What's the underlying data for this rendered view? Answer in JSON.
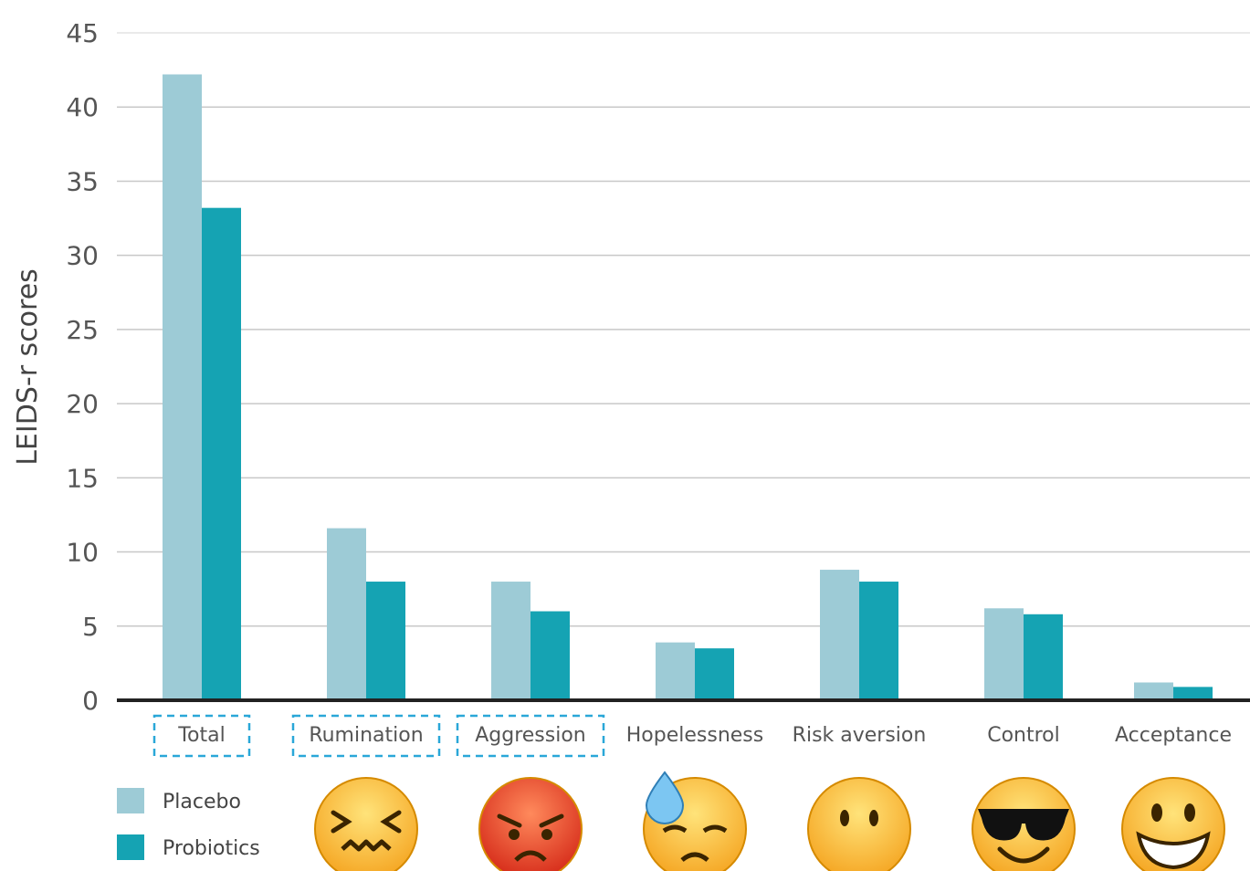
{
  "chart_data": {
    "type": "bar",
    "ylabel": "LEIDS-r scores",
    "xlabel": "",
    "ylim": [
      0,
      45
    ],
    "yticks": [
      0,
      5,
      10,
      15,
      20,
      25,
      30,
      35,
      40,
      45
    ],
    "grid": true,
    "legend_position": "bottom-left",
    "categories": [
      "Total",
      "Rumination",
      "Aggression",
      "Hopelessness",
      "Risk aversion",
      "Control",
      "Acceptance"
    ],
    "highlighted_categories": [
      "Total",
      "Rumination",
      "Aggression"
    ],
    "series": [
      {
        "name": "Placebo",
        "color": "#9dcbd6",
        "values": [
          42.2,
          11.6,
          8.0,
          3.9,
          8.8,
          6.2,
          1.2
        ]
      },
      {
        "name": "Probiotics",
        "color": "#15a3b3",
        "values": [
          33.2,
          8.0,
          6.0,
          3.5,
          8.0,
          5.8,
          0.9
        ]
      }
    ],
    "emoji_icons": [
      {
        "category": "Rumination",
        "icon": "confounded-face-icon"
      },
      {
        "category": "Aggression",
        "icon": "angry-face-icon"
      },
      {
        "category": "Hopelessness",
        "icon": "downcast-face-with-sweat-icon"
      },
      {
        "category": "Risk aversion",
        "icon": "face-without-mouth-icon"
      },
      {
        "category": "Control",
        "icon": "smiling-face-with-sunglasses-icon"
      },
      {
        "category": "Acceptance",
        "icon": "grinning-face-icon"
      }
    ]
  }
}
